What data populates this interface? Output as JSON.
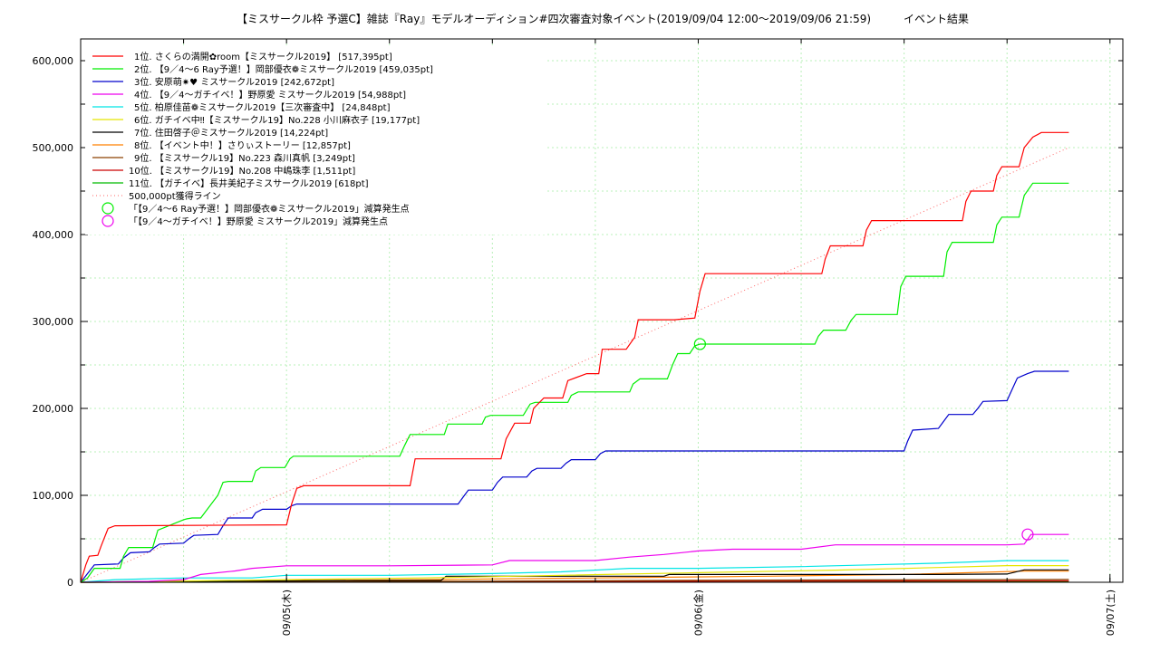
{
  "chart_data": {
    "type": "line",
    "title": "【ミスサークル枠 予選C】雑誌『Ray』モデルオーディション#四次審査対象イベント(2019/09/04 12:00〜2019/09/06 21:59)　　　イベント結果",
    "xlabel": "",
    "ylabel": "",
    "ylim": [
      0,
      625000
    ],
    "xlim": [
      0,
      57.6
    ],
    "x_ticks": [
      {
        "x": 12,
        "label": "09/05(木)"
      },
      {
        "x": 36,
        "label": "09/06(金)"
      },
      {
        "x": 60,
        "label": "09/07(土)"
      }
    ],
    "y_ticks": [
      {
        "y": 0,
        "label": "0"
      },
      {
        "y": 100000,
        "label": "100,000"
      },
      {
        "y": 200000,
        "label": "200,000"
      },
      {
        "y": 300000,
        "label": "300,000"
      },
      {
        "y": 400000,
        "label": "400,000"
      },
      {
        "y": 500000,
        "label": "500,000"
      },
      {
        "y": 600000,
        "label": "600,000"
      }
    ],
    "grid": true,
    "legend_position": "top-left",
    "series": [
      {
        "name": "1位. さくらの満開✿room【ミスサークル2019】 [517,395pt]",
        "color": "#ff0000",
        "x": [
          0,
          0.3,
          0.5,
          1.0,
          1.2,
          1.6,
          2.0,
          12.0,
          12.3,
          12.6,
          13.0,
          19.2,
          19.5,
          24.5,
          24.8,
          25.3,
          26.2,
          26.4,
          27.0,
          28.1,
          28.4,
          29.5,
          30.2,
          30.4,
          31.8,
          32.3,
          32.5,
          34.6,
          35.8,
          36.1,
          36.4,
          43.2,
          43.4,
          43.7,
          45.6,
          45.8,
          46.1,
          51.4,
          51.6,
          51.9,
          53.2,
          53.4,
          53.7,
          54.7,
          55.0,
          55.5,
          56.0,
          57.6
        ],
        "y": [
          0,
          20000,
          30000,
          31000,
          42000,
          62000,
          65000,
          66000,
          90000,
          108000,
          111000,
          111000,
          142000,
          142000,
          165000,
          183000,
          183000,
          200000,
          212000,
          212000,
          232000,
          240000,
          240000,
          268000,
          268000,
          282000,
          302000,
          302000,
          304000,
          335000,
          355000,
          355000,
          372000,
          387000,
          387000,
          405000,
          416000,
          416000,
          438000,
          450000,
          450000,
          468000,
          478000,
          478000,
          500000,
          512000,
          517395,
          517395
        ]
      },
      {
        "name": "2位. 【9／4〜6 Ray予選！】岡部優衣❁ミスサークル2019 [459,035pt]",
        "color": "#00ee00",
        "x": [
          0,
          0.4,
          0.8,
          2.3,
          2.5,
          2.8,
          4.2,
          4.5,
          6.0,
          6.2,
          6.5,
          7.0,
          8.0,
          8.3,
          8.6,
          10.0,
          10.2,
          10.5,
          11.9,
          12.2,
          12.4,
          18.6,
          18.9,
          19.2,
          21.2,
          21.4,
          21.7,
          23.4,
          23.6,
          23.9,
          25.8,
          26.2,
          26.5,
          28.4,
          28.6,
          29.0,
          32.0,
          32.2,
          32.6,
          34.2,
          34.5,
          34.8,
          35.5,
          35.8,
          36.1,
          42.8,
          43.0,
          43.3,
          44.6,
          44.9,
          45.2,
          47.6,
          47.8,
          48.1,
          50.3,
          50.5,
          50.8,
          53.2,
          53.4,
          53.7,
          54.7,
          55.0,
          55.5,
          56.2,
          57.6
        ],
        "y": [
          0,
          5000,
          16000,
          16000,
          30000,
          40000,
          40000,
          60000,
          72000,
          73000,
          74000,
          74000,
          100000,
          115000,
          116000,
          116000,
          128000,
          132000,
          132000,
          142000,
          145000,
          145000,
          158000,
          170000,
          170000,
          182000,
          182000,
          182000,
          190000,
          192000,
          192000,
          205000,
          207000,
          207000,
          215000,
          219000,
          219000,
          228000,
          234000,
          234000,
          250000,
          263000,
          263000,
          272000,
          274000,
          274000,
          283000,
          290000,
          290000,
          301000,
          308000,
          308000,
          340000,
          352000,
          352000,
          380000,
          391000,
          391000,
          411000,
          420000,
          420000,
          445000,
          459035,
          459035,
          459035
        ]
      },
      {
        "name": "3位. 安原萌✷♥ ミスサークル2019 [242,672pt]",
        "color": "#0000cc",
        "x": [
          0,
          0.4,
          0.8,
          2.2,
          2.5,
          2.9,
          4.0,
          4.3,
          4.6,
          6.0,
          6.3,
          6.6,
          8.0,
          8.3,
          8.6,
          10.0,
          10.2,
          10.6,
          12.0,
          12.3,
          12.6,
          22.0,
          22.3,
          22.6,
          24.0,
          24.3,
          24.6,
          26.0,
          26.3,
          26.6,
          28.0,
          28.3,
          28.6,
          30.0,
          30.3,
          30.6,
          32.0,
          32.3,
          32.6,
          48.0,
          48.2,
          48.5,
          50.0,
          50.3,
          50.6,
          52.0,
          52.3,
          52.6,
          54.0,
          54.3,
          54.6,
          55.2,
          55.6,
          57.6
        ],
        "y": [
          0,
          10000,
          20000,
          21000,
          28000,
          34000,
          35000,
          40000,
          44000,
          45000,
          50000,
          54000,
          55000,
          65000,
          74000,
          74000,
          80000,
          84000,
          84000,
          88000,
          90000,
          90000,
          98000,
          106000,
          106000,
          115000,
          121000,
          121000,
          128000,
          131000,
          131000,
          137000,
          141000,
          141000,
          148000,
          151000,
          151000,
          151000,
          151000,
          151000,
          162000,
          175000,
          177000,
          185000,
          193000,
          193000,
          200000,
          208000,
          209000,
          222000,
          235000,
          240000,
          242672,
          242672
        ]
      },
      {
        "name": "4位. 【9／4〜ガチイベ！】野原愛 ミスサークル2019 [54,988pt]",
        "color": "#ee00ee",
        "x": [
          0,
          4.0,
          6.0,
          7.0,
          9.0,
          10.0,
          12.0,
          18.0,
          24.0,
          25.0,
          30.0,
          32.0,
          34.0,
          36.0,
          38.0,
          42.0,
          44.0,
          46.0,
          50.0,
          52.0,
          54.0,
          55.0,
          55.4,
          57.6
        ],
        "y": [
          0,
          1000,
          3000,
          9000,
          13000,
          16000,
          19000,
          19000,
          20000,
          25000,
          25000,
          29000,
          32000,
          36000,
          38000,
          38000,
          43000,
          43000,
          43000,
          43000,
          43000,
          44000,
          54988,
          54988
        ]
      },
      {
        "name": "5位. 柏原佳苗❁ミスサークル2019【三次審査中】 [24,848pt]",
        "color": "#00e5e5",
        "x": [
          0,
          2.0,
          6.0,
          10.0,
          12.0,
          18.0,
          24.0,
          28.0,
          32.0,
          36.0,
          42.0,
          46.0,
          50.0,
          54.0,
          57.6
        ],
        "y": [
          0,
          3000,
          5000,
          5000,
          8000,
          8000,
          10000,
          12000,
          16000,
          16000,
          18000,
          20000,
          22000,
          24848,
          24848
        ]
      },
      {
        "name": "6位. ガチイベ中‼【ミスサークル19】No.228 小川麻衣子 [19,177pt]",
        "color": "#e5e500",
        "x": [
          0,
          6.0,
          12.0,
          20.0,
          28.0,
          36.0,
          44.0,
          50.0,
          54.0,
          57.6
        ],
        "y": [
          0,
          1500,
          3000,
          5000,
          8000,
          11000,
          14000,
          17000,
          19177,
          19177
        ]
      },
      {
        "name": "7位. 住田啓子＠ミスサークル2019 [14,224pt]",
        "color": "#000000",
        "x": [
          0,
          8.0,
          16.0,
          21.0,
          21.3,
          34.0,
          34.3,
          50.0,
          54.0,
          55.0,
          57.6
        ],
        "y": [
          0,
          1000,
          2000,
          2000,
          7000,
          7000,
          9000,
          9000,
          9500,
          14224,
          14224
        ]
      },
      {
        "name": "8位. 【イベント中！】さりぃストーリー [12,857pt]",
        "color": "#ff8000",
        "x": [
          0,
          10.0,
          20.0,
          30.0,
          40.0,
          48.0,
          55.0,
          57.6
        ],
        "y": [
          0,
          1500,
          3000,
          5000,
          7000,
          9000,
          12857,
          12857
        ]
      },
      {
        "name": "9位. 【ミスサークル19】No.223 森川真帆 [3,249pt]",
        "color": "#8c4000",
        "x": [
          0,
          20.0,
          40.0,
          57.6
        ],
        "y": [
          0,
          1000,
          2500,
          3249
        ]
      },
      {
        "name": "10位. 【ミスサークル19】No.208 中嶋珠李 [1,511pt]",
        "color": "#cc0000",
        "x": [
          0,
          20.0,
          40.0,
          57.6
        ],
        "y": [
          0,
          500,
          1200,
          1511
        ]
      },
      {
        "name": "11位. 【ガチイベ】長井美紀子ミスサークル2019 [618pt]",
        "color": "#00bb00",
        "x": [
          0,
          20.0,
          57.6
        ],
        "y": [
          0,
          300,
          618
        ]
      },
      {
        "name": "500,000pt獲得ライン",
        "color": "#ff6666",
        "dashed": true,
        "x": [
          0,
          57.6
        ],
        "y": [
          0,
          500000
        ]
      }
    ],
    "markers": [
      {
        "name": "「【9／4〜6 Ray予選！】岡部優衣❁ミスサークル2019」減算発生点",
        "color": "#00ee00",
        "x": 36.1,
        "y": 274000
      },
      {
        "name": "「【9／4〜ガチイベ！】野原愛 ミスサークル2019」減算発生点",
        "color": "#ee00ee",
        "x": 55.2,
        "y": 55000
      }
    ]
  }
}
